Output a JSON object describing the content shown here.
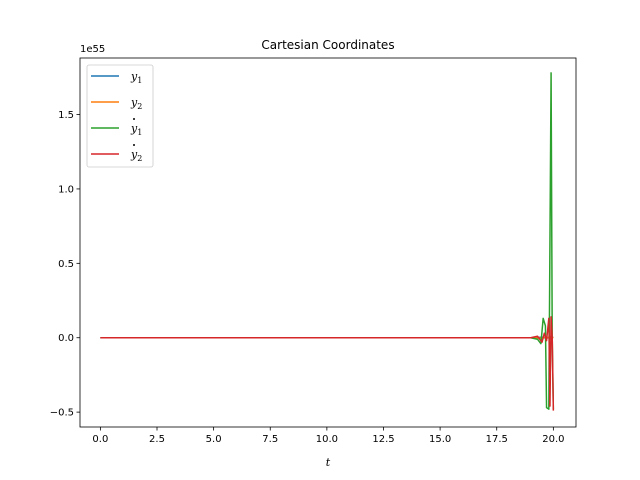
{
  "chart_data": {
    "type": "line",
    "title": "Cartesian Coordinates",
    "xlabel": "t",
    "ylabel": "",
    "offset_text": "1e55",
    "xlim": [
      -0.9,
      21.0
    ],
    "ylim": [
      -0.6,
      1.88
    ],
    "xticks": [
      0,
      2.5,
      5,
      7.5,
      10,
      12.5,
      15,
      17.5,
      20
    ],
    "xtick_labels": [
      "0.0",
      "2.5",
      "5.0",
      "7.5",
      "10.0",
      "12.5",
      "15.0",
      "17.5",
      "20.0"
    ],
    "yticks": [
      -0.5,
      0,
      0.5,
      1.0,
      1.5
    ],
    "ytick_labels": [
      "−0.5",
      "0.0",
      "0.5",
      "1.0",
      "1.5"
    ],
    "legend_position": "upper-left",
    "series": [
      {
        "name": "y₁",
        "label_base": "y",
        "label_sub": "1",
        "dot": false,
        "color": "#1f77b4",
        "x": [
          0,
          19.0,
          19.5,
          19.7,
          19.85,
          20.0
        ],
        "y": [
          0,
          0,
          0.003,
          -0.004,
          0.006,
          0.002
        ]
      },
      {
        "name": "y₂",
        "label_base": "y",
        "label_sub": "2",
        "dot": false,
        "color": "#ff7f0e",
        "x": [
          0,
          19.0,
          19.5,
          19.7,
          19.85,
          20.0
        ],
        "y": [
          0,
          0,
          -0.003,
          0.005,
          -0.006,
          0.003
        ]
      },
      {
        "name": "ẏ₁",
        "label_base": "y",
        "label_sub": "1",
        "dot": true,
        "color": "#2ca02c",
        "x": [
          0,
          19.0,
          19.3,
          19.45,
          19.55,
          19.65,
          19.7,
          19.8,
          19.9,
          19.95,
          20.0
        ],
        "y": [
          0,
          0,
          -0.01,
          -0.04,
          0.13,
          0.08,
          -0.47,
          -0.48,
          1.78,
          0.0,
          -0.48
        ]
      },
      {
        "name": "ẏ₂",
        "label_base": "y",
        "label_sub": "2",
        "dot": true,
        "color": "#d62728",
        "x": [
          0,
          19.0,
          19.3,
          19.5,
          19.6,
          19.7,
          19.8,
          19.85,
          19.9,
          19.95,
          20.0
        ],
        "y": [
          0,
          0,
          0.01,
          -0.03,
          0.03,
          -0.02,
          0.13,
          -0.46,
          0.14,
          0.0,
          -0.49
        ]
      }
    ]
  }
}
